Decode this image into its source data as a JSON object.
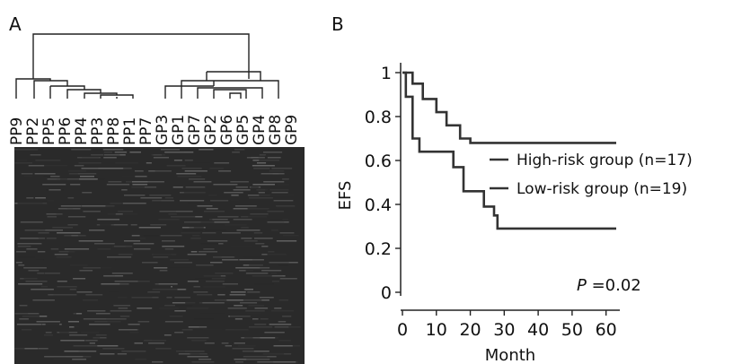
{
  "panel_a": {
    "label": "A",
    "samples": [
      "PP9",
      "PP2",
      "PP5",
      "PP6",
      "PP4",
      "PP3",
      "PP8",
      "PP1",
      "PP7",
      "GP3",
      "GP1",
      "GP7",
      "GP2",
      "GP6",
      "GP5",
      "GP4",
      "GP8",
      "GP9"
    ],
    "heatmap_color": "#2a2a2a"
  },
  "panel_b": {
    "label": "B",
    "p_value_label": "P",
    "p_value_text": "=0.02",
    "chart_data": {
      "type": "line",
      "xlabel": "Month",
      "ylabel": "EFS",
      "xlim": [
        0,
        63
      ],
      "ylim": [
        0,
        1.05
      ],
      "x_ticks": [
        "0",
        "10",
        "20",
        "30",
        "40",
        "50",
        "60"
      ],
      "y_ticks": [
        "0",
        "0.2",
        "0.4",
        "0.6",
        "0.8",
        "1"
      ],
      "legend": [
        {
          "label": "High-risk group (n=17)"
        },
        {
          "label": "Low-risk group (n=19)"
        }
      ],
      "series": [
        {
          "curve_x": [
            0,
            3,
            3,
            6,
            6,
            10,
            10,
            13,
            13,
            17,
            17,
            20,
            20,
            63
          ],
          "curve_y": [
            1.0,
            1.0,
            0.95,
            0.95,
            0.88,
            0.88,
            0.82,
            0.82,
            0.76,
            0.76,
            0.7,
            0.7,
            0.68,
            0.68
          ]
        },
        {
          "curve_x": [
            0,
            1,
            1,
            3,
            3,
            5,
            5,
            15,
            15,
            18,
            18,
            24,
            24,
            27,
            27,
            28,
            28,
            63
          ],
          "curve_y": [
            1.0,
            1.0,
            0.89,
            0.89,
            0.7,
            0.7,
            0.64,
            0.64,
            0.57,
            0.57,
            0.46,
            0.46,
            0.39,
            0.39,
            0.35,
            0.35,
            0.29,
            0.29
          ]
        }
      ]
    }
  }
}
